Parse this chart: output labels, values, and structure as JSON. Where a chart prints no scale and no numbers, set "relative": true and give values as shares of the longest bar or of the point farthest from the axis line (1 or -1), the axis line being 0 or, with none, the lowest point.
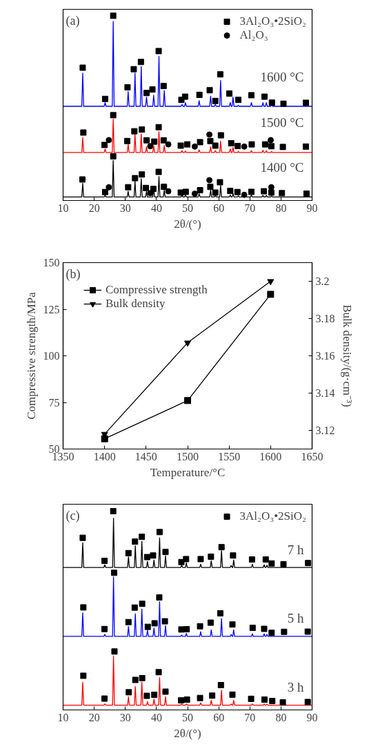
{
  "chart_data": [
    {
      "type": "line",
      "relative": true,
      "xlabel": "2θ/(°)",
      "xlim": [
        10,
        90
      ],
      "xticks": [
        10,
        20,
        30,
        40,
        50,
        60,
        70,
        80,
        90
      ],
      "tick_labels": "x",
      "grid": false,
      "legend": "top right",
      "annotations": [
        "(a)",
        "1600 °C",
        "1500 °C",
        "1400 °C"
      ],
      "series": [
        {
          "color": "#0000ff",
          "x": [
            10,
            16.0,
            16.3,
            16.6,
            23.2,
            23.5,
            23.8,
            25.8,
            26.1,
            26.4,
            30.6,
            30.9,
            31.2,
            32.8,
            33.1,
            33.4,
            34.8,
            35.1,
            35.4,
            36.5,
            36.8,
            37.1,
            38.8,
            39.1,
            39.4,
            40.5,
            40.8,
            41.1,
            42.2,
            42.5,
            42.8,
            47.9,
            48.2,
            48.5,
            49.0,
            49.3,
            49.6,
            53.4,
            53.7,
            54.0,
            57.1,
            57.4,
            57.7,
            58.6,
            58.9,
            59.2,
            60.3,
            60.6,
            60.9,
            63.4,
            63.7,
            64.0,
            64.3,
            64.6,
            64.9,
            66.0,
            66.3,
            66.6,
            70.2,
            70.5,
            70.8,
            73.9,
            74.2,
            74.5,
            75.0,
            75.3,
            75.6,
            76.7,
            77.0,
            77.3,
            90
          ],
          "values": [
            0.51,
            0.51,
            0.69,
            0.51,
            0.51,
            0.53,
            0.51,
            0.51,
            0.97,
            0.51,
            0.51,
            0.59,
            0.51,
            0.51,
            0.69,
            0.51,
            0.51,
            0.725,
            0.51,
            0.51,
            0.56,
            0.51,
            0.51,
            0.57,
            0.51,
            0.51,
            0.78,
            0.51,
            0.51,
            0.595,
            0.51,
            0.51,
            0.52,
            0.51,
            0.51,
            0.53,
            0.51,
            0.51,
            0.54,
            0.51,
            0.51,
            0.565,
            0.51,
            0.51,
            0.52,
            0.51,
            0.51,
            0.65,
            0.51,
            0.51,
            0.53,
            0.51,
            0.51,
            0.56,
            0.51,
            0.51,
            0.515,
            0.51,
            0.51,
            0.53,
            0.51,
            0.51,
            0.53,
            0.51,
            0.51,
            0.53,
            0.51,
            0.51,
            0.52,
            0.51,
            0.51
          ]
        },
        {
          "color": "#ff0000",
          "x": [
            10,
            16.0,
            16.3,
            16.6,
            23.2,
            23.5,
            23.8,
            25.8,
            26.1,
            26.4,
            30.6,
            30.9,
            31.2,
            32.8,
            33.1,
            33.4,
            34.8,
            35.1,
            35.4,
            36.5,
            36.8,
            37.1,
            38.8,
            39.1,
            39.4,
            40.5,
            40.8,
            41.1,
            42.2,
            42.5,
            42.8,
            47.9,
            48.2,
            48.5,
            49.0,
            49.3,
            49.6,
            53.4,
            53.7,
            54.0,
            57.1,
            57.4,
            57.7,
            58.6,
            58.9,
            59.2,
            60.3,
            60.6,
            60.9,
            63.4,
            63.7,
            64.0,
            64.3,
            64.6,
            64.9,
            66.0,
            66.3,
            66.6,
            70.2,
            70.5,
            70.8,
            73.9,
            74.2,
            74.5,
            75.0,
            75.3,
            75.6,
            76.7,
            77.0,
            77.3,
            90
          ],
          "values": [
            0.26,
            0.26,
            0.341,
            0.26,
            0.26,
            0.279,
            0.26,
            0.26,
            0.44,
            0.26,
            0.26,
            0.304,
            0.26,
            0.26,
            0.36,
            0.26,
            0.26,
            0.36,
            0.26,
            0.26,
            0.291,
            0.26,
            0.26,
            0.297,
            0.26,
            0.26,
            0.372,
            0.26,
            0.26,
            0.297,
            0.26,
            0.26,
            0.27,
            0.26,
            0.26,
            0.268,
            0.26,
            0.26,
            0.275,
            0.26,
            0.26,
            0.291,
            0.26,
            0.26,
            0.27,
            0.26,
            0.26,
            0.322,
            0.26,
            0.26,
            0.279,
            0.26,
            0.26,
            0.287,
            0.26,
            0.26,
            0.265,
            0.26,
            0.26,
            0.27,
            0.26,
            0.26,
            0.272,
            0.26,
            0.26,
            0.27,
            0.26,
            0.26,
            0.265,
            0.26,
            0.26
          ]
        },
        {
          "color": "#000000",
          "x": [
            10,
            16.0,
            16.3,
            16.6,
            23.2,
            23.5,
            23.8,
            25.8,
            26.1,
            26.4,
            30.6,
            30.9,
            31.2,
            32.8,
            33.1,
            33.4,
            34.8,
            35.1,
            35.4,
            36.5,
            36.8,
            37.1,
            38.8,
            39.1,
            39.4,
            40.5,
            40.8,
            41.1,
            42.2,
            42.5,
            42.8,
            47.9,
            48.2,
            48.5,
            49.0,
            49.3,
            49.6,
            53.4,
            53.7,
            54.0,
            57.1,
            57.4,
            57.7,
            58.6,
            58.9,
            59.2,
            60.3,
            60.6,
            60.9,
            63.4,
            63.7,
            64.0,
            64.3,
            64.6,
            64.9,
            66.0,
            66.3,
            66.6,
            70.2,
            70.5,
            70.8,
            73.9,
            74.2,
            74.5,
            75.0,
            75.3,
            75.6,
            76.7,
            77.0,
            77.3,
            90
          ],
          "values": [
            0.019,
            0.019,
            0.093,
            0.019,
            0.019,
            0.03,
            0.019,
            0.019,
            0.217,
            0.019,
            0.019,
            0.05,
            0.019,
            0.019,
            0.105,
            0.019,
            0.019,
            0.118,
            0.019,
            0.019,
            0.05,
            0.019,
            0.019,
            0.062,
            0.019,
            0.019,
            0.13,
            0.019,
            0.019,
            0.056,
            0.019,
            0.019,
            0.03,
            0.019,
            0.019,
            0.03,
            0.019,
            0.019,
            0.037,
            0.019,
            0.019,
            0.056,
            0.019,
            0.019,
            0.03,
            0.019,
            0.019,
            0.081,
            0.019,
            0.019,
            0.03,
            0.019,
            0.019,
            0.037,
            0.019,
            0.019,
            0.025,
            0.019,
            0.019,
            0.03,
            0.019,
            0.019,
            0.028,
            0.019,
            0.019,
            0.028,
            0.019,
            0.019,
            0.025,
            0.019,
            0.019
          ]
        },
        {
          "type": "scatter",
          "name": "3Al₂O₃•2SiO₂",
          "marker": "square",
          "color": "#000000",
          "x": [
            16.3,
            23.5,
            26.1,
            30.7,
            32.7,
            35.0,
            36.8,
            38.7,
            40.7,
            42.3,
            48.0,
            49.2,
            53.8,
            57.1,
            58.9,
            60.5,
            63.4,
            66.3,
            70.5,
            74.7,
            77.1,
            80.8,
            88.0,
            16.5,
            23.3,
            26.1,
            30.6,
            32.9,
            35.3,
            36.8,
            39.3,
            40.7,
            42.3,
            47.8,
            49.9,
            54.0,
            57.3,
            58.9,
            60.7,
            64.0,
            66.1,
            70.6,
            74.9,
            76.9,
            80.6,
            88.0,
            16.2,
            23.5,
            26.1,
            30.9,
            33.1,
            35.3,
            36.6,
            39.0,
            40.7,
            42.4,
            47.8,
            49.4,
            54.0,
            57.3,
            58.9,
            60.4,
            63.7,
            66.0,
            70.5,
            74.5,
            76.9,
            80.3,
            88.2
          ],
          "values": [
            0.719,
            0.55,
            1.0,
            0.613,
            0.711,
            0.75,
            0.582,
            0.601,
            0.809,
            0.62,
            0.545,
            0.562,
            0.572,
            0.597,
            0.539,
            0.683,
            0.579,
            0.545,
            0.57,
            0.562,
            0.53,
            0.524,
            0.529,
            0.368,
            0.301,
            0.462,
            0.322,
            0.375,
            0.384,
            0.326,
            0.319,
            0.397,
            0.326,
            0.297,
            0.304,
            0.316,
            0.322,
            0.297,
            0.353,
            0.31,
            0.295,
            0.304,
            0.304,
            0.294,
            0.29,
            0.292,
            0.114,
            0.046,
            0.239,
            0.072,
            0.121,
            0.141,
            0.068,
            0.063,
            0.155,
            0.074,
            0.043,
            0.047,
            0.056,
            0.074,
            0.043,
            0.099,
            0.052,
            0.046,
            0.047,
            0.05,
            0.043,
            0.04,
            0.037
          ]
        },
        {
          "type": "scatter",
          "name": "Al₂O₃",
          "marker": "circle",
          "color": "#000000",
          "x": [
            24.7,
            38.0,
            43.8,
            52.3,
            57.0,
            68.2,
            76.7,
            24.7,
            38.0,
            43.8,
            52.3,
            57.0,
            68.2,
            76.9
          ],
          "values": [
            0.327,
            0.294,
            0.304,
            0.292,
            0.357,
            0.292,
            0.327,
            0.072,
            0.04,
            0.05,
            0.037,
            0.11,
            0.031,
            0.072
          ]
        }
      ]
    },
    {
      "type": "line",
      "xlabel": "Temperature/°C",
      "ylabel": "Compressive strength/MPa",
      "y2label": "Bulk density/(g·cm⁻³)",
      "x": [
        1400,
        1500,
        1600
      ],
      "xlim": [
        1350,
        1650
      ],
      "xticks": [
        1350,
        1400,
        1450,
        1500,
        1550,
        1600,
        1650
      ],
      "ylim": [
        50,
        150
      ],
      "yticks": [
        50,
        75,
        100,
        125,
        150
      ],
      "y2lim": [
        3.11,
        3.21
      ],
      "y2ticks": [
        3.12,
        3.14,
        3.16,
        3.18,
        3.2
      ],
      "grid": false,
      "legend": "top left",
      "annotations": [
        "(b)"
      ],
      "series": [
        {
          "name": "Compressive strength",
          "marker": "square",
          "color": "#000000",
          "values": [
            55.5,
            76,
            133
          ]
        },
        {
          "name": "Bulk density",
          "marker": "triangle",
          "color": "#000000",
          "axis": "y2",
          "values": [
            3.118,
            3.167,
            3.2
          ]
        }
      ]
    },
    {
      "type": "line",
      "relative": true,
      "xlabel": "2θ/(°)",
      "xlim": [
        10,
        90
      ],
      "xticks": [
        10,
        20,
        30,
        40,
        50,
        60,
        70,
        80,
        90
      ],
      "tick_labels": "x",
      "grid": false,
      "legend": "top right",
      "annotations": [
        "(c)",
        "7 h",
        "5 h",
        "3 h"
      ],
      "series": [
        {
          "color": "#000000",
          "x": [
            10,
            16.0,
            16.3,
            16.6,
            23.1,
            23.4,
            23.7,
            25.9,
            26.2,
            26.5,
            30.7,
            31.0,
            31.3,
            32.9,
            33.2,
            33.5,
            35.0,
            35.3,
            35.6,
            36.8,
            37.1,
            37.4,
            38.9,
            39.2,
            39.5,
            40.7,
            41.0,
            41.3,
            42.6,
            42.9,
            43.2,
            47.8,
            48.1,
            48.4,
            49.3,
            49.6,
            49.9,
            53.9,
            54.2,
            54.5,
            57.3,
            57.6,
            57.9,
            60.6,
            60.9,
            61.2,
            63.7,
            64.0,
            64.3,
            64.5,
            64.8,
            65.1,
            70.5,
            70.8,
            71.1,
            74.3,
            74.6,
            74.9,
            75.2,
            75.5,
            75.8,
            90
          ],
          "values": [
            0.717,
            0.717,
            0.841,
            0.717,
            0.717,
            0.73,
            0.717,
            0.717,
            0.964,
            0.717,
            0.717,
            0.77,
            0.717,
            0.717,
            0.826,
            0.717,
            0.717,
            0.848,
            0.717,
            0.717,
            0.747,
            0.717,
            0.717,
            0.754,
            0.717,
            0.717,
            0.866,
            0.717,
            0.717,
            0.776,
            0.717,
            0.717,
            0.729,
            0.717,
            0.717,
            0.74,
            0.717,
            0.717,
            0.733,
            0.717,
            0.717,
            0.751,
            0.717,
            0.717,
            0.801,
            0.717,
            0.717,
            0.727,
            0.717,
            0.717,
            0.754,
            0.717,
            0.717,
            0.733,
            0.717,
            0.717,
            0.73,
            0.717,
            0.717,
            0.728,
            0.717,
            0.717
          ]
        },
        {
          "color": "#0000ff",
          "x": [
            10,
            16.0,
            16.3,
            16.6,
            23.1,
            23.4,
            23.7,
            25.9,
            26.2,
            26.5,
            30.7,
            31.0,
            31.3,
            32.9,
            33.2,
            33.5,
            35.0,
            35.3,
            35.6,
            36.8,
            37.1,
            37.4,
            38.9,
            39.2,
            39.5,
            40.7,
            41.0,
            41.3,
            42.6,
            42.9,
            43.2,
            47.8,
            48.1,
            48.4,
            49.3,
            49.6,
            49.9,
            53.9,
            54.2,
            54.5,
            57.3,
            57.6,
            57.9,
            60.6,
            60.9,
            61.2,
            63.7,
            64.0,
            64.3,
            64.5,
            64.8,
            65.1,
            70.5,
            70.8,
            71.1,
            74.3,
            74.6,
            74.9,
            75.2,
            75.5,
            75.8,
            90
          ],
          "values": [
            0.37,
            0.37,
            0.488,
            0.37,
            0.37,
            0.38,
            0.37,
            0.37,
            0.669,
            0.37,
            0.37,
            0.42,
            0.37,
            0.37,
            0.484,
            0.37,
            0.37,
            0.507,
            0.37,
            0.37,
            0.4,
            0.37,
            0.37,
            0.412,
            0.37,
            0.37,
            0.545,
            0.37,
            0.37,
            0.424,
            0.37,
            0.37,
            0.376,
            0.37,
            0.37,
            0.385,
            0.37,
            0.37,
            0.394,
            0.37,
            0.37,
            0.403,
            0.37,
            0.37,
            0.46,
            0.37,
            0.37,
            0.38,
            0.37,
            0.37,
            0.403,
            0.37,
            0.37,
            0.383,
            0.37,
            0.37,
            0.383,
            0.37,
            0.37,
            0.38,
            0.37,
            0.37
          ]
        },
        {
          "color": "#ff0000",
          "x": [
            10,
            16.0,
            16.3,
            16.6,
            23.1,
            23.4,
            23.7,
            25.9,
            26.2,
            26.5,
            30.7,
            31.0,
            31.3,
            32.9,
            33.2,
            33.5,
            35.0,
            35.3,
            35.6,
            36.8,
            37.1,
            37.4,
            38.9,
            39.2,
            39.5,
            40.7,
            41.0,
            41.3,
            42.6,
            42.9,
            43.2,
            47.8,
            48.1,
            48.4,
            49.3,
            49.6,
            49.9,
            53.9,
            54.2,
            54.5,
            57.3,
            57.6,
            57.9,
            60.6,
            60.9,
            61.2,
            63.7,
            64.0,
            64.3,
            64.5,
            64.8,
            65.1,
            70.5,
            70.8,
            71.1,
            74.3,
            74.6,
            74.9,
            75.2,
            75.5,
            75.8,
            90
          ],
          "values": [
            0.024,
            0.024,
            0.139,
            0.024,
            0.024,
            0.03,
            0.024,
            0.024,
            0.271,
            0.024,
            0.024,
            0.066,
            0.024,
            0.024,
            0.118,
            0.024,
            0.024,
            0.139,
            0.024,
            0.024,
            0.042,
            0.024,
            0.024,
            0.054,
            0.024,
            0.024,
            0.163,
            0.024,
            0.024,
            0.066,
            0.024,
            0.024,
            0.03,
            0.024,
            0.024,
            0.03,
            0.024,
            0.024,
            0.036,
            0.024,
            0.024,
            0.048,
            0.024,
            0.024,
            0.099,
            0.024,
            0.024,
            0.03,
            0.024,
            0.024,
            0.048,
            0.024,
            0.024,
            0.03,
            0.024,
            0.024,
            0.03,
            0.024,
            0.024,
            0.029,
            0.024,
            0.024
          ]
        },
        {
          "type": "scatter",
          "name": "3Al₂O₃•2SiO₂",
          "marker": "square",
          "color": "#000000",
          "x": [
            16.3,
            23.3,
            26.1,
            31.0,
            33.1,
            35.3,
            37.0,
            38.9,
            41.0,
            42.9,
            48.0,
            49.5,
            54.2,
            57.5,
            60.9,
            64.6,
            70.7,
            75.1,
            77.0,
            80.8,
            88.7,
            16.5,
            23.3,
            26.4,
            31.0,
            33.0,
            35.4,
            37.2,
            39.4,
            40.9,
            42.7,
            48.0,
            49.7,
            54.0,
            57.4,
            60.5,
            64.4,
            70.9,
            74.6,
            77.0,
            81.0,
            88.6,
            16.5,
            23.3,
            26.5,
            31.1,
            33.2,
            35.4,
            36.9,
            39.3,
            40.7,
            42.9,
            47.9,
            49.8,
            54.0,
            57.9,
            60.7,
            64.4,
            70.4,
            74.7,
            77.2,
            80.6,
            88.6
          ],
          "values": [
            0.866,
            0.75,
            1.0,
            0.789,
            0.847,
            0.871,
            0.769,
            0.777,
            0.895,
            0.795,
            0.744,
            0.759,
            0.759,
            0.771,
            0.819,
            0.777,
            0.757,
            0.757,
            0.737,
            0.733,
            0.739,
            0.516,
            0.407,
            0.69,
            0.442,
            0.515,
            0.534,
            0.418,
            0.436,
            0.566,
            0.446,
            0.405,
            0.406,
            0.421,
            0.439,
            0.486,
            0.43,
            0.413,
            0.408,
            0.388,
            0.393,
            0.394,
            0.172,
            0.057,
            0.294,
            0.089,
            0.151,
            0.16,
            0.071,
            0.076,
            0.19,
            0.092,
            0.048,
            0.052,
            0.06,
            0.072,
            0.125,
            0.077,
            0.056,
            0.052,
            0.045,
            0.038,
            0.04
          ]
        }
      ]
    }
  ]
}
